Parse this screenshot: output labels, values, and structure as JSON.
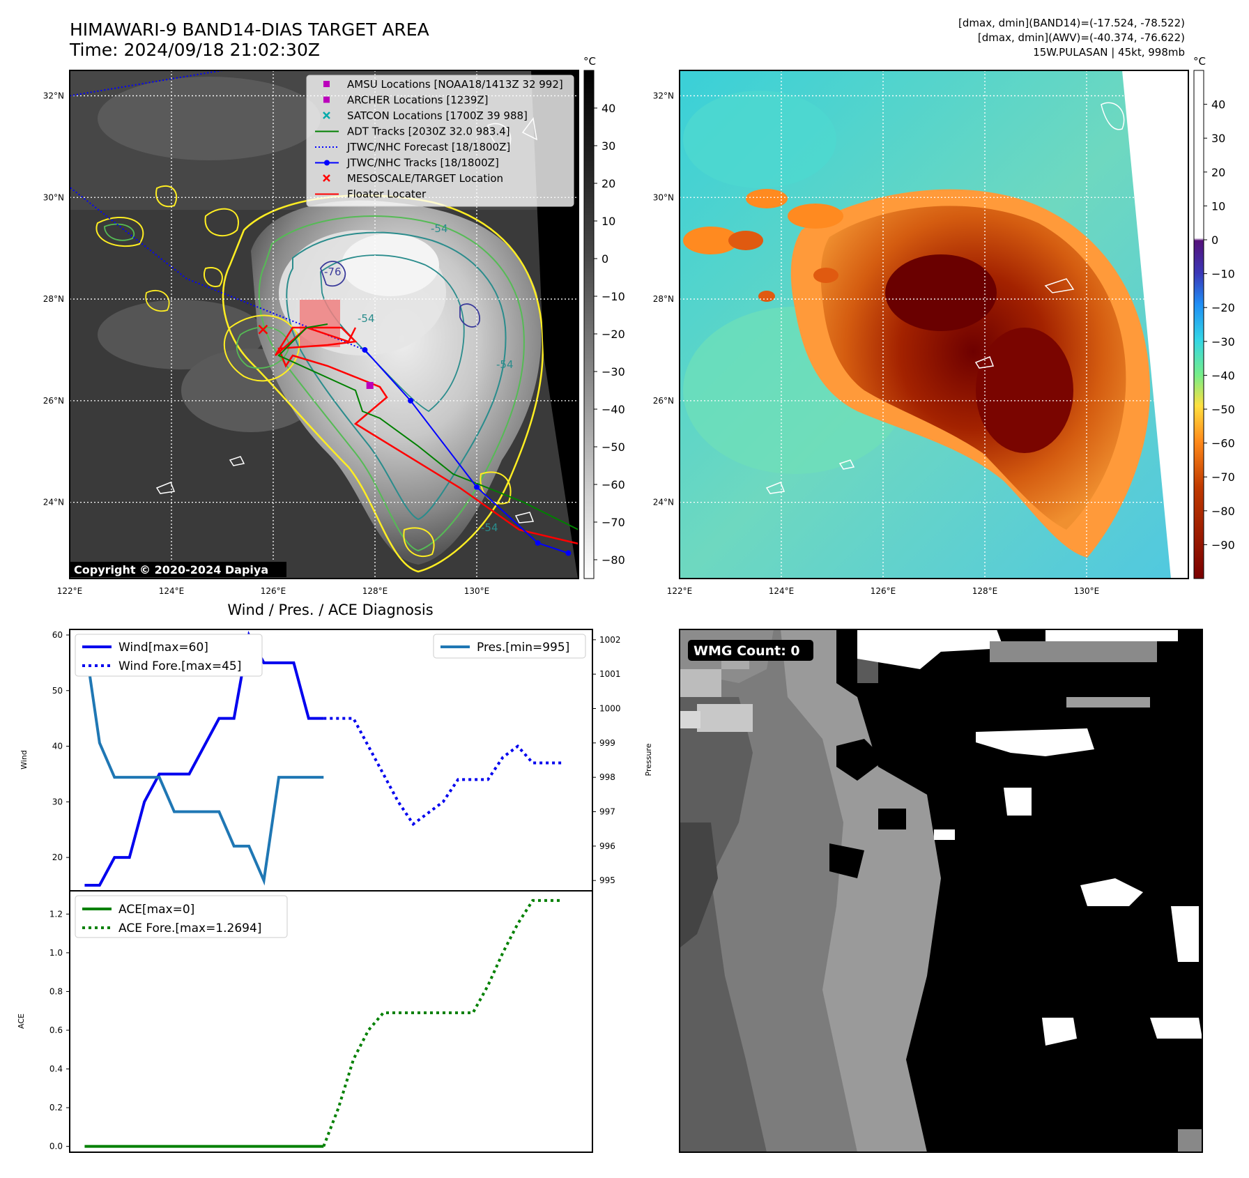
{
  "header": {
    "title_line1": "HIMAWARI-9 BAND14-DIAS TARGET AREA",
    "title_line2": "Time: 2024/09/18 21:02:30Z",
    "info_line1": "[dmax, dmin](BAND14)=(-17.524, -78.522)",
    "info_line2": "[dmax, dmin](AWV)=(-40.374, -76.622)",
    "info_line3": "15W.PULASAN | 45kt, 998mb"
  },
  "copyright": "Copyright © 2020-2024 Dapiya",
  "wmg_count": "WMG Count: 0",
  "colors": {
    "wind": "#0000ee",
    "pressure": "#1f77b4",
    "ace": "#008000",
    "track_red": "#ff0000",
    "track_green": "#008000",
    "track_blue": "#0000ff",
    "contour_yellow": "#ffee22",
    "contour_green": "#55bb55",
    "contour_teal": "#2a8c8c"
  },
  "chart_data": [
    {
      "type": "map",
      "name": "ir_map",
      "unit_label": "°C",
      "lat_ticks": [
        "32°N",
        "30°N",
        "28°N",
        "26°N",
        "24°N"
      ],
      "lat_values": [
        32,
        30,
        28,
        26,
        24
      ],
      "lon_ticks": [
        "122°E",
        "124°E",
        "126°E",
        "128°E",
        "130°E"
      ],
      "lon_values": [
        122,
        124,
        126,
        128,
        130
      ],
      "lat_range": [
        22.5,
        32.5
      ],
      "lon_range": [
        122,
        132
      ],
      "colorbar_ticks": [
        "40",
        "30",
        "20",
        "10",
        "0",
        "−10",
        "−20",
        "−30",
        "−40",
        "−50",
        "−60",
        "−70",
        "−80"
      ],
      "colorbar_values": [
        40,
        30,
        20,
        10,
        0,
        -10,
        -20,
        -30,
        -40,
        -50,
        -60,
        -70,
        -80
      ],
      "colorbar_range": [
        -85,
        50
      ],
      "contour_labels": [
        "-54",
        "-54",
        "-54",
        "-76",
        "-54"
      ],
      "legend": [
        {
          "label": "AMSU Locations [NOAA18/1413Z 32 992]",
          "marker": "square",
          "color": "#bb00bb"
        },
        {
          "label": "ARCHER Locations [1239Z]",
          "marker": "square",
          "color": "#bb00bb"
        },
        {
          "label": "SATCON Locations [1700Z 39 988]",
          "marker": "x",
          "color": "#00aaaa"
        },
        {
          "label": "ADT Tracks [2030Z 32.0 983.4]",
          "marker": "line",
          "color": "#008000"
        },
        {
          "label": "JTWC/NHC Forecast [18/1800Z]",
          "marker": "dotted",
          "color": "#0000ff"
        },
        {
          "label": "JTWC/NHC Tracks [18/1800Z]",
          "marker": "line-dot",
          "color": "#0000ff"
        },
        {
          "label": "MESOSCALE/TARGET Location",
          "marker": "x",
          "color": "#ff0000"
        },
        {
          "label": "Floater Locater",
          "marker": "line",
          "color": "#ff0000"
        }
      ],
      "jtwc_track": [
        [
          131.8,
          23.0
        ],
        [
          131.2,
          23.2
        ],
        [
          130.0,
          24.3
        ],
        [
          128.7,
          26.0
        ],
        [
          127.8,
          27.0
        ]
      ],
      "jtwc_forecast": [
        [
          127.8,
          27.0
        ],
        [
          124.3,
          28.4
        ],
        [
          122.0,
          30.2
        ]
      ],
      "jtwc_forecast_north": [
        [
          122.0,
          32.0
        ],
        [
          125.0,
          32.5
        ]
      ],
      "mesoscale_target": [
        125.8,
        27.4
      ],
      "amsu_location": [
        127.9,
        26.3
      ]
    },
    {
      "type": "map",
      "name": "awv_map",
      "unit_label": "°C",
      "lat_ticks": [
        "32°N",
        "30°N",
        "28°N",
        "26°N",
        "24°N"
      ],
      "lat_values": [
        32,
        30,
        28,
        26,
        24
      ],
      "lon_ticks": [
        "122°E",
        "124°E",
        "126°E",
        "128°E",
        "130°E"
      ],
      "lon_values": [
        122,
        124,
        126,
        128,
        130
      ],
      "colorbar_ticks": [
        "40",
        "30",
        "20",
        "10",
        "0",
        "−10",
        "−20",
        "−30",
        "−40",
        "−50",
        "−60",
        "−70",
        "−80",
        "−90"
      ],
      "colorbar_values": [
        40,
        30,
        20,
        10,
        0,
        -10,
        -20,
        -30,
        -40,
        -50,
        -60,
        -70,
        -80,
        -90
      ],
      "colorbar_range": [
        -100,
        50
      ]
    },
    {
      "type": "line",
      "name": "wind_pressure",
      "title": "Wind / Pres. / ACE Diagnosis",
      "ylabel": "Wind",
      "y2label": "Pressure",
      "ylim": [
        14,
        61
      ],
      "y2lim": [
        994.7,
        1002.3
      ],
      "xlim": [
        -1,
        34
      ],
      "yticks": [
        20,
        30,
        40,
        50,
        60
      ],
      "y2ticks": [
        995,
        996,
        997,
        998,
        999,
        1000,
        1001,
        1002
      ],
      "series": [
        {
          "name": "Wind[max=60]",
          "axis": "left",
          "style": "solid",
          "x": [
            0,
            1,
            2,
            3,
            4,
            5,
            6,
            7,
            8,
            9,
            10,
            11,
            12,
            13,
            14,
            15,
            16
          ],
          "values": [
            15,
            15,
            20,
            20,
            30,
            35,
            35,
            35,
            40,
            45,
            45,
            60,
            55,
            55,
            55,
            45,
            45
          ]
        },
        {
          "name": "Wind Fore.[max=45]",
          "axis": "left",
          "style": "dotted",
          "x": [
            16,
            17,
            18,
            19,
            20,
            21,
            22,
            23,
            24,
            25,
            26,
            27,
            28,
            29,
            30,
            31,
            32
          ],
          "values": [
            45,
            45,
            45,
            40,
            35,
            30,
            26,
            28,
            30,
            34,
            34,
            34,
            38,
            40,
            37,
            37,
            37
          ]
        },
        {
          "name": "Pres.[min=995]",
          "axis": "right",
          "style": "solid",
          "x": [
            0,
            1,
            2,
            3,
            4,
            5,
            6,
            7,
            8,
            9,
            10,
            11,
            12,
            13,
            14,
            15,
            16
          ],
          "values": [
            1002,
            999,
            998,
            998,
            998,
            998,
            997,
            997,
            997,
            997,
            996,
            996,
            995,
            998,
            998,
            998,
            998
          ]
        }
      ]
    },
    {
      "type": "line",
      "name": "ace",
      "ylabel": "ACE",
      "ylim": [
        -0.03,
        1.32
      ],
      "xlim": [
        -1,
        34
      ],
      "yticks": [
        0.0,
        0.2,
        0.4,
        0.6,
        0.8,
        1.0,
        1.2
      ],
      "ytick_labels": [
        "0.0",
        "0.2",
        "0.4",
        "0.6",
        "0.8",
        "1.0",
        "1.2"
      ],
      "series": [
        {
          "name": "ACE[max=0]",
          "style": "solid",
          "x": [
            0,
            16
          ],
          "values": [
            0,
            0
          ]
        },
        {
          "name": "ACE Fore.[max=1.2694]",
          "style": "dotted",
          "x": [
            16,
            17,
            18,
            19,
            20,
            21,
            22,
            23,
            24,
            25,
            26,
            27,
            28,
            29,
            30,
            31,
            32
          ],
          "values": [
            0,
            0.2,
            0.45,
            0.6,
            0.69,
            0.69,
            0.69,
            0.69,
            0.69,
            0.69,
            0.69,
            0.83,
            1.0,
            1.15,
            1.27,
            1.27,
            1.27
          ]
        }
      ]
    }
  ]
}
